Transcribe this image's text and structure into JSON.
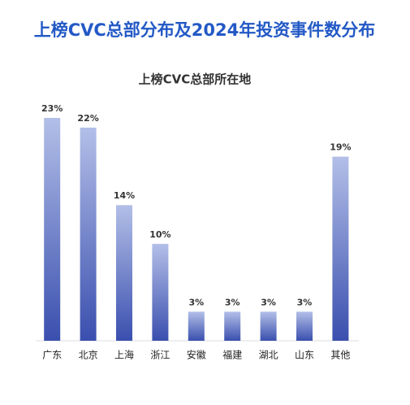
{
  "chart_data": {
    "type": "bar",
    "title": "上榜CVC总部分布及2024年投资事件数分布",
    "subtitle": "上榜CVC总部所在地",
    "categories": [
      "广东",
      "北京",
      "上海",
      "浙江",
      "安徽",
      "福建",
      "湖北",
      "山东",
      "其他"
    ],
    "values": [
      23,
      22,
      14,
      10,
      3,
      3,
      3,
      3,
      19
    ],
    "value_labels": [
      "23%",
      "22%",
      "14%",
      "10%",
      "3%",
      "3%",
      "3%",
      "3%",
      "19%"
    ],
    "color": "#3a4fae"
  }
}
